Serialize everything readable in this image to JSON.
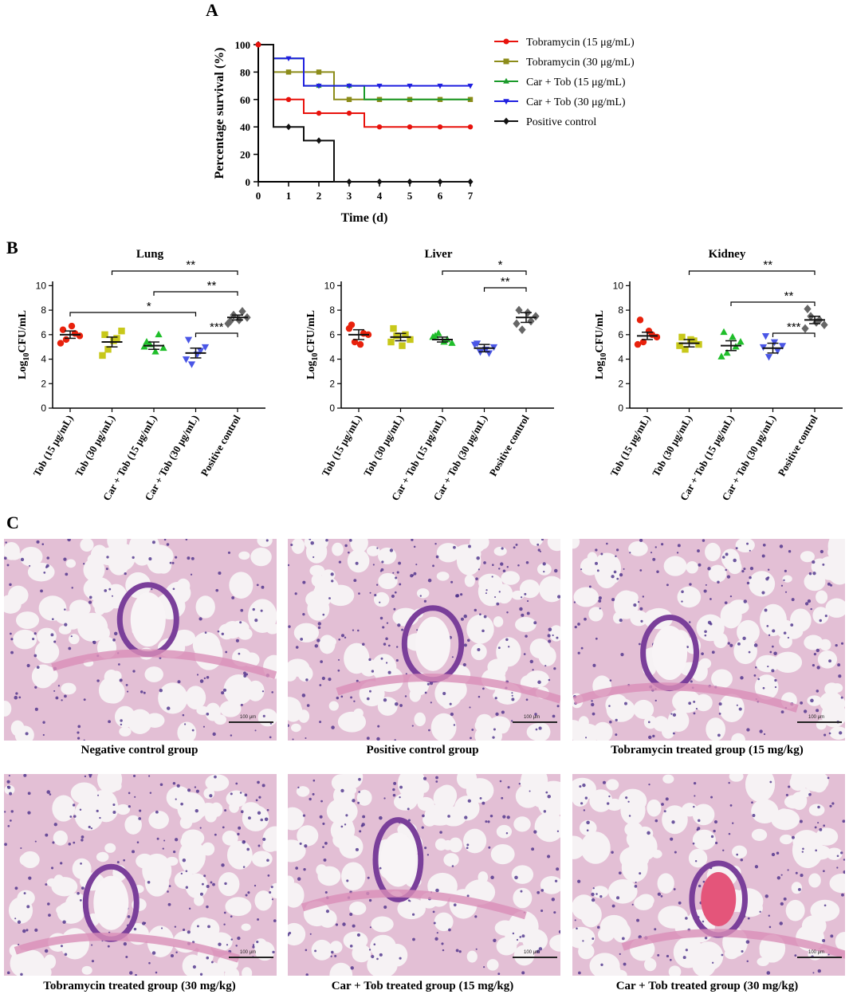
{
  "panels": {
    "a": "A",
    "b": "B",
    "c": "C"
  },
  "chart_data": [
    {
      "type": "line",
      "step": true,
      "xlabel": "Time (d)",
      "ylabel": "Percentage survival (%)",
      "xlim": [
        0,
        7
      ],
      "ylim": [
        0,
        100
      ],
      "xticks": [
        0,
        1,
        2,
        3,
        4,
        5,
        6,
        7
      ],
      "yticks": [
        0,
        20,
        40,
        60,
        80,
        100
      ],
      "legend": "right",
      "series": [
        {
          "name": "Tobramycin (15 μg/mL)",
          "color": "#e8120c",
          "marker": "circle",
          "x": [
            0,
            0.5,
            1.5,
            3.5,
            7
          ],
          "y": [
            100,
            60,
            50,
            40,
            40
          ],
          "markers_x": [
            0,
            1,
            2,
            3,
            4,
            5,
            6,
            7
          ]
        },
        {
          "name": "Tobramycin (30 μg/mL)",
          "color": "#8c8c1a",
          "marker": "square",
          "x": [
            0,
            0.5,
            2.5,
            7
          ],
          "y": [
            100,
            80,
            60,
            60
          ],
          "markers_x": [
            1,
            2,
            3,
            4,
            5,
            6,
            7
          ]
        },
        {
          "name": "Car + Tob (15 μg/mL)",
          "color": "#1a9a2a",
          "marker": "triangle-up",
          "x": [
            0,
            0.5,
            1.5,
            3.5,
            7
          ],
          "y": [
            100,
            90,
            70,
            60,
            60
          ],
          "markers_x": [
            2,
            3
          ]
        },
        {
          "name": "Car + Tob (30 μg/mL)",
          "color": "#1f1fe0",
          "marker": "triangle-down",
          "x": [
            0,
            0.5,
            1.5,
            7
          ],
          "y": [
            100,
            90,
            70,
            70
          ],
          "markers_x": [
            1,
            2,
            3,
            4,
            5,
            6,
            7
          ]
        },
        {
          "name": "Positive control",
          "color": "#111111",
          "marker": "diamond",
          "x": [
            0,
            0.5,
            1.5,
            2.5,
            7
          ],
          "y": [
            100,
            40,
            30,
            0,
            0
          ],
          "markers_x": [
            1,
            2,
            3,
            4,
            5,
            6,
            7
          ]
        }
      ]
    },
    {
      "type": "scatter",
      "title": "Lung",
      "ylabel": "Log10CFU/mL",
      "ylim": [
        0,
        11
      ],
      "yticks": [
        0,
        2,
        4,
        6,
        8,
        10
      ],
      "categories": [
        "Tob (15 μg/mL)",
        "Tob (30 μg/mL)",
        "Car + Tob (15 μg/mL)",
        "Car + Tob (30 μg/mL)",
        "Positive control"
      ],
      "groups": [
        {
          "mean": 6.0,
          "sem": 0.3,
          "points": [
            6.4,
            6.1,
            5.9,
            5.6,
            6.7,
            5.3
          ]
        },
        {
          "mean": 5.4,
          "sem": 0.4,
          "points": [
            6.0,
            5.7,
            6.3,
            4.8,
            5.5,
            4.3
          ]
        },
        {
          "mean": 5.1,
          "sem": 0.3,
          "points": [
            5.4,
            6.0,
            4.9,
            5.2,
            4.6,
            5.0
          ]
        },
        {
          "mean": 4.5,
          "sem": 0.4,
          "points": [
            5.6,
            4.7,
            5.0,
            3.6,
            4.4,
            4.0
          ]
        },
        {
          "mean": 7.4,
          "sem": 0.2,
          "points": [
            7.1,
            7.9,
            7.4,
            7.6,
            7.2,
            6.9
          ]
        }
      ],
      "significance": [
        {
          "from": 1,
          "to": 4,
          "label": "**"
        },
        {
          "from": 2,
          "to": 4,
          "label": "**"
        },
        {
          "from": 0,
          "to": 3,
          "label": "*"
        },
        {
          "from": 3,
          "to": 4,
          "label": "***"
        }
      ]
    },
    {
      "type": "scatter",
      "title": "Liver",
      "ylabel": "Log10CFU/mL",
      "ylim": [
        0,
        11
      ],
      "yticks": [
        0,
        2,
        4,
        6,
        8,
        10
      ],
      "categories": [
        "Tob (15 μg/mL)",
        "Tob (30 μg/mL)",
        "Car + Tob (15 μg/mL)",
        "Car + Tob (30 μg/mL)",
        "Positive control"
      ],
      "groups": [
        {
          "mean": 6.0,
          "sem": 0.4,
          "points": [
            6.8,
            6.1,
            6.0,
            5.4,
            5.2,
            6.5
          ]
        },
        {
          "mean": 5.8,
          "sem": 0.3,
          "points": [
            6.5,
            6.0,
            5.6,
            5.9,
            5.1,
            5.4
          ]
        },
        {
          "mean": 5.6,
          "sem": 0.2,
          "points": [
            5.9,
            5.6,
            5.3,
            6.1,
            5.4,
            5.8
          ]
        },
        {
          "mean": 4.9,
          "sem": 0.3,
          "points": [
            5.3,
            4.5,
            5.0,
            4.6,
            4.8,
            5.2
          ]
        },
        {
          "mean": 7.4,
          "sem": 0.4,
          "points": [
            8.0,
            7.1,
            7.5,
            6.4,
            7.8,
            6.9
          ]
        }
      ],
      "significance": [
        {
          "from": 2,
          "to": 4,
          "label": "*"
        },
        {
          "from": 3,
          "to": 4,
          "label": "**"
        }
      ]
    },
    {
      "type": "scatter",
      "title": "Kidney",
      "ylabel": "Log10CFU/mL",
      "ylim": [
        0,
        11
      ],
      "yticks": [
        0,
        2,
        4,
        6,
        8,
        10
      ],
      "categories": [
        "Tob (15 μg/mL)",
        "Tob (30 μg/mL)",
        "Car + Tob (15 μg/mL)",
        "Car + Tob (30 μg/mL)",
        "Positive control"
      ],
      "groups": [
        {
          "mean": 5.9,
          "sem": 0.3,
          "points": [
            7.2,
            6.0,
            5.8,
            5.4,
            6.3,
            5.2
          ]
        },
        {
          "mean": 5.3,
          "sem": 0.3,
          "points": [
            5.8,
            5.5,
            5.2,
            4.8,
            5.6,
            5.1
          ]
        },
        {
          "mean": 5.1,
          "sem": 0.4,
          "points": [
            6.2,
            5.0,
            5.4,
            4.5,
            5.8,
            4.2
          ]
        },
        {
          "mean": 4.9,
          "sem": 0.4,
          "points": [
            5.9,
            4.7,
            5.1,
            4.2,
            5.4,
            5.0
          ]
        },
        {
          "mean": 7.2,
          "sem": 0.3,
          "points": [
            8.1,
            7.2,
            6.8,
            7.5,
            7.0,
            6.5
          ]
        }
      ],
      "significance": [
        {
          "from": 1,
          "to": 4,
          "label": "**"
        },
        {
          "from": 2,
          "to": 4,
          "label": "**"
        },
        {
          "from": 3,
          "to": 4,
          "label": "***"
        }
      ]
    }
  ],
  "group_colors": [
    "#e8210c",
    "#c8c81a",
    "#1fbe2a",
    "#4a56e6",
    "#666666"
  ],
  "group_markers": [
    "circle",
    "square",
    "triangle-up",
    "triangle-down",
    "diamond"
  ],
  "histology": {
    "scale_label": "100 μm",
    "captions": [
      "Negative control group",
      "Positive control group",
      "Tobramycin treated group  (15 mg/kg)",
      "Tobramycin treated group  (30 mg/kg)",
      "Car + Tob treated group  (15 mg/kg)",
      "Car + Tob treated group  (30 mg/kg)"
    ]
  }
}
